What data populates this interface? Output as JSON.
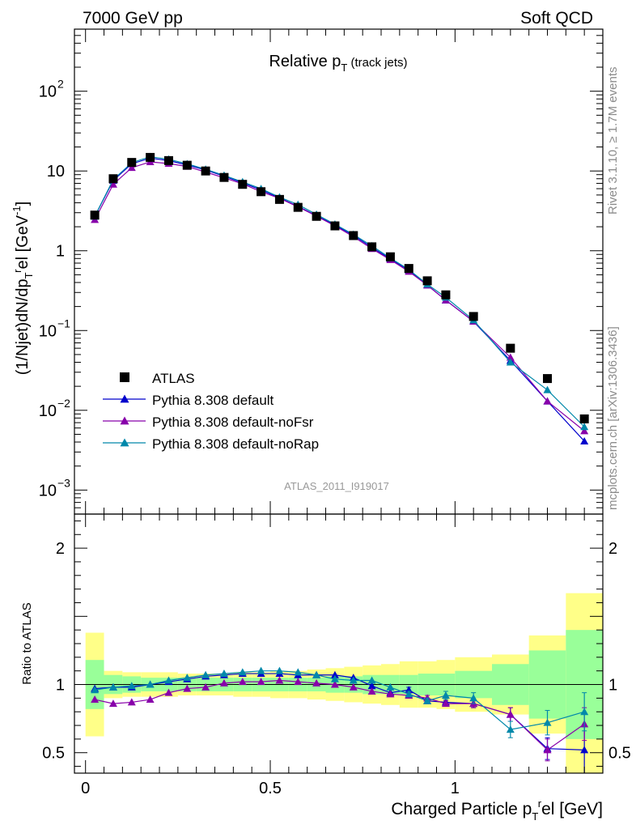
{
  "header": {
    "left": "7000 GeV pp",
    "right": "Soft QCD"
  },
  "side_labels": {
    "rivet": "Rivet 3.1.10, ≥ 1.7M events",
    "mcplots": "mcplots.cern.ch [arXiv:1306.3436]"
  },
  "chart_data": {
    "type": "scatter",
    "title": "Relative p",
    "title_sub": "T",
    "title_suffix": " (track jets)",
    "analysis_id": "ATLAS_2011_I919017",
    "ylabel": "(1/Njet)dN/dp",
    "ylabel_sub": "T",
    "ylabel_sup": "r",
    "ylabel_suffix": "el [GeV",
    "ylabel_unit_sup": "-1",
    "ylabel_close": "]",
    "ratio_ylabel": "Ratio to ATLAS",
    "xlabel": "Charged Particle p",
    "xlabel_sub": "T",
    "xlabel_sup": "r",
    "xlabel_suffix": "el [GeV]",
    "xlim": [
      -0.03,
      1.4
    ],
    "ylim": [
      0.0005,
      600
    ],
    "ylog": true,
    "ratio_ylim": [
      0.35,
      2.25
    ],
    "xticks": [
      0,
      0.5,
      1
    ],
    "xtick_labels": [
      "0",
      "0.5",
      "1"
    ],
    "yticks": [
      0.001,
      0.01,
      0.1,
      1,
      10,
      100
    ],
    "ytick_labels": [
      {
        "base": "10",
        "exp": "−3"
      },
      {
        "base": "10",
        "exp": "−2"
      },
      {
        "base": "10",
        "exp": "−1"
      },
      {
        "base": "1",
        "exp": ""
      },
      {
        "base": "10",
        "exp": ""
      },
      {
        "base": "10",
        "exp": "2"
      }
    ],
    "ratio_yticks": [
      0.5,
      1,
      2
    ],
    "ratio_ytick_labels": [
      "0.5",
      "1",
      "2"
    ],
    "bins": [
      [
        0,
        0.05
      ],
      [
        0.05,
        0.1
      ],
      [
        0.1,
        0.15
      ],
      [
        0.15,
        0.2
      ],
      [
        0.2,
        0.25
      ],
      [
        0.25,
        0.3
      ],
      [
        0.3,
        0.35
      ],
      [
        0.35,
        0.4
      ],
      [
        0.4,
        0.45
      ],
      [
        0.45,
        0.5
      ],
      [
        0.5,
        0.55
      ],
      [
        0.55,
        0.6
      ],
      [
        0.6,
        0.65
      ],
      [
        0.65,
        0.7
      ],
      [
        0.7,
        0.75
      ],
      [
        0.75,
        0.8
      ],
      [
        0.8,
        0.85
      ],
      [
        0.85,
        0.9
      ],
      [
        0.9,
        0.95
      ],
      [
        0.95,
        1.0
      ],
      [
        1.0,
        1.1
      ],
      [
        1.1,
        1.2
      ],
      [
        1.2,
        1.3
      ],
      [
        1.3,
        1.4
      ]
    ],
    "x": [
      0.025,
      0.075,
      0.125,
      0.175,
      0.225,
      0.275,
      0.325,
      0.375,
      0.425,
      0.475,
      0.525,
      0.575,
      0.625,
      0.675,
      0.725,
      0.775,
      0.825,
      0.875,
      0.925,
      0.975,
      1.05,
      1.15,
      1.25,
      1.35
    ],
    "data": {
      "name": "ATLAS",
      "values": [
        2.8,
        8.0,
        12.8,
        14.8,
        13.5,
        11.8,
        10.0,
        8.3,
        6.8,
        5.5,
        4.4,
        3.5,
        2.7,
        2.05,
        1.55,
        1.12,
        0.84,
        0.6,
        0.42,
        0.28,
        0.15,
        0.06,
        0.025,
        0.0078
      ]
    },
    "series": [
      {
        "name": "Pythia 8.308 default",
        "color": "#0000cc",
        "values": [
          2.7,
          7.6,
          12.3,
          14.5,
          13.5,
          11.9,
          10.3,
          8.6,
          7.1,
          5.8,
          4.6,
          3.6,
          2.75,
          2.1,
          1.56,
          1.1,
          0.79,
          0.57,
          0.37,
          0.24,
          0.13,
          0.042,
          0.013,
          0.0041
        ],
        "ratio": [
          0.97,
          0.98,
          0.98,
          1.0,
          1.02,
          1.04,
          1.06,
          1.07,
          1.08,
          1.08,
          1.08,
          1.07,
          1.07,
          1.07,
          1.05,
          0.99,
          0.94,
          0.96,
          0.88,
          0.87,
          0.86,
          0.78,
          0.53,
          0.52
        ],
        "ratio_err": [
          0.01,
          0.01,
          0.01,
          0.01,
          0.01,
          0.01,
          0.01,
          0.01,
          0.01,
          0.01,
          0.01,
          0.01,
          0.01,
          0.01,
          0.01,
          0.01,
          0.01,
          0.02,
          0.02,
          0.02,
          0.03,
          0.05,
          0.08,
          0.17
        ]
      },
      {
        "name": "Pythia 8.308 default-noFsr",
        "color": "#8800aa",
        "values": [
          2.45,
          6.8,
          11.0,
          13.0,
          12.4,
          11.4,
          9.7,
          8.2,
          6.9,
          5.5,
          4.55,
          3.55,
          2.72,
          2.05,
          1.5,
          1.06,
          0.77,
          0.55,
          0.37,
          0.24,
          0.13,
          0.046,
          0.013,
          0.0055
        ],
        "ratio": [
          0.89,
          0.86,
          0.87,
          0.89,
          0.94,
          0.97,
          0.98,
          1.01,
          1.02,
          1.02,
          1.03,
          1.02,
          1.01,
          1.0,
          0.98,
          0.95,
          0.93,
          0.92,
          0.9,
          0.86,
          0.86,
          0.78,
          0.52,
          0.71
        ],
        "ratio_err": [
          0.01,
          0.01,
          0.01,
          0.01,
          0.01,
          0.01,
          0.01,
          0.01,
          0.01,
          0.01,
          0.01,
          0.01,
          0.01,
          0.01,
          0.01,
          0.01,
          0.01,
          0.02,
          0.02,
          0.02,
          0.03,
          0.05,
          0.08,
          0.12
        ]
      },
      {
        "name": "Pythia 8.308 default-noRap",
        "color": "#0088aa",
        "values": [
          2.7,
          7.8,
          12.7,
          15.1,
          14.0,
          12.3,
          10.5,
          8.8,
          7.3,
          6.0,
          4.7,
          3.8,
          2.85,
          2.15,
          1.6,
          1.15,
          0.81,
          0.58,
          0.38,
          0.26,
          0.135,
          0.04,
          0.018,
          0.0062
        ],
        "ratio": [
          0.96,
          0.98,
          0.99,
          1.0,
          1.03,
          1.05,
          1.07,
          1.08,
          1.09,
          1.1,
          1.1,
          1.09,
          1.07,
          1.04,
          1.03,
          1.03,
          0.98,
          0.93,
          0.88,
          0.92,
          0.9,
          0.67,
          0.72,
          0.8
        ],
        "ratio_err": [
          0.01,
          0.01,
          0.01,
          0.01,
          0.01,
          0.01,
          0.01,
          0.01,
          0.01,
          0.01,
          0.01,
          0.01,
          0.01,
          0.01,
          0.01,
          0.01,
          0.01,
          0.02,
          0.02,
          0.03,
          0.04,
          0.06,
          0.09,
          0.14
        ]
      }
    ],
    "band_green": [
      [
        0.82,
        1.18
      ],
      [
        0.93,
        1.07
      ],
      [
        0.94,
        1.06
      ],
      [
        0.95,
        1.05
      ],
      [
        0.95,
        1.05
      ],
      [
        0.95,
        1.05
      ],
      [
        0.95,
        1.05
      ],
      [
        0.95,
        1.05
      ],
      [
        0.95,
        1.05
      ],
      [
        0.95,
        1.05
      ],
      [
        0.95,
        1.05
      ],
      [
        0.95,
        1.05
      ],
      [
        0.95,
        1.05
      ],
      [
        0.94,
        1.06
      ],
      [
        0.94,
        1.06
      ],
      [
        0.93,
        1.07
      ],
      [
        0.93,
        1.07
      ],
      [
        0.93,
        1.07
      ],
      [
        0.92,
        1.08
      ],
      [
        0.92,
        1.08
      ],
      [
        0.9,
        1.1
      ],
      [
        0.85,
        1.15
      ],
      [
        0.75,
        1.25
      ],
      [
        0.6,
        1.4
      ]
    ],
    "band_yellow": [
      [
        0.62,
        1.38
      ],
      [
        0.9,
        1.1
      ],
      [
        0.91,
        1.09
      ],
      [
        0.91,
        1.09
      ],
      [
        0.91,
        1.09
      ],
      [
        0.92,
        1.08
      ],
      [
        0.92,
        1.08
      ],
      [
        0.92,
        1.08
      ],
      [
        0.91,
        1.09
      ],
      [
        0.91,
        1.09
      ],
      [
        0.9,
        1.1
      ],
      [
        0.9,
        1.1
      ],
      [
        0.89,
        1.11
      ],
      [
        0.88,
        1.12
      ],
      [
        0.87,
        1.13
      ],
      [
        0.86,
        1.14
      ],
      [
        0.85,
        1.15
      ],
      [
        0.83,
        1.17
      ],
      [
        0.83,
        1.17
      ],
      [
        0.82,
        1.18
      ],
      [
        0.8,
        1.2
      ],
      [
        0.78,
        1.22
      ],
      [
        0.64,
        1.36
      ],
      [
        0.33,
        1.67
      ]
    ],
    "legend_placement": "bottom-left",
    "colors": {
      "band_green": "#99ff99",
      "band_yellow": "#ffff88",
      "data": "#000000"
    }
  }
}
